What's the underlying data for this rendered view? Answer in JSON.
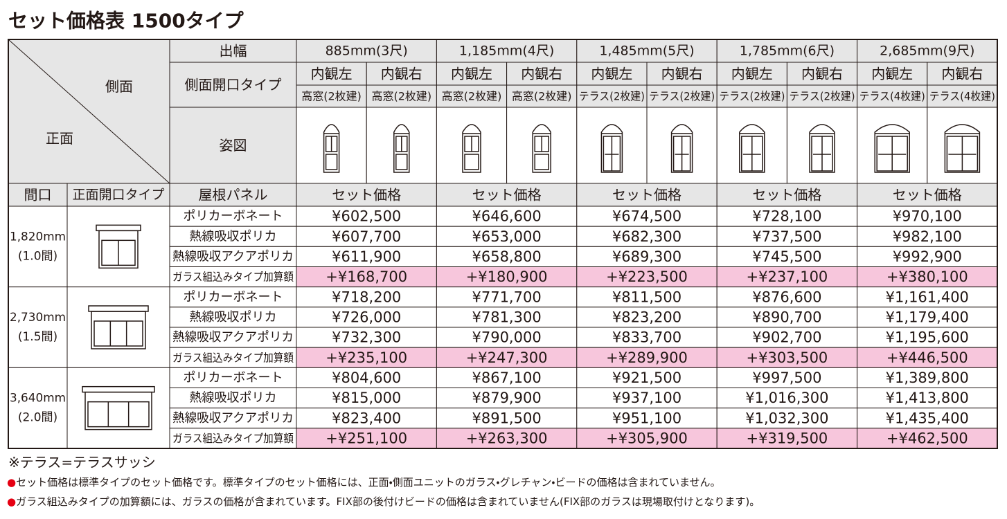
{
  "title": "セット価格表 1500タイプ",
  "header": {
    "corner_side": "側面",
    "corner_front": "正面",
    "width_label": "出幅",
    "side_type_label": "側面開口タイプ",
    "figure_label": "姿図",
    "frontage_label": "間口",
    "front_type_label": "正面開口タイプ",
    "roof_label": "屋根パネル"
  },
  "widths": [
    {
      "label": "885mm(3尺)",
      "price_header": "セット価格",
      "sides": [
        {
          "view": "内観左",
          "type": "高窓(2枚建)"
        },
        {
          "view": "内観右",
          "type": "高窓(2枚建)"
        }
      ]
    },
    {
      "label": "1,185mm(4尺)",
      "price_header": "セット価格",
      "sides": [
        {
          "view": "内観左",
          "type": "高窓(2枚建)"
        },
        {
          "view": "内観右",
          "type": "高窓(2枚建)"
        }
      ]
    },
    {
      "label": "1,485mm(5尺)",
      "price_header": "セット価格",
      "sides": [
        {
          "view": "内観左",
          "type": "テラス(2枚建)"
        },
        {
          "view": "内観右",
          "type": "テラス(2枚建)"
        }
      ]
    },
    {
      "label": "1,785mm(6尺)",
      "price_header": "セット価格",
      "sides": [
        {
          "view": "内観左",
          "type": "テラス(2枚建)"
        },
        {
          "view": "内観右",
          "type": "テラス(2枚建)"
        }
      ]
    },
    {
      "label": "2,685mm(9尺)",
      "price_header": "セット価格",
      "sides": [
        {
          "view": "内観左",
          "type": "テラス(4枚建)"
        },
        {
          "view": "内観右",
          "type": "テラス(4枚建)"
        }
      ]
    }
  ],
  "groups": [
    {
      "frontage": "1,820mm",
      "ken": "(1.0間)",
      "rows": [
        {
          "panel": "ポリカーボネート",
          "prices": [
            "¥602,500",
            "¥646,600",
            "¥674,500",
            "¥728,100",
            "¥970,100"
          ]
        },
        {
          "panel": "熱線吸収ポリカ",
          "prices": [
            "¥607,700",
            "¥653,000",
            "¥682,300",
            "¥737,500",
            "¥982,100"
          ]
        },
        {
          "panel": "熱線吸収アクアポリカ",
          "prices": [
            "¥611,900",
            "¥658,800",
            "¥689,300",
            "¥745,500",
            "¥992,900"
          ]
        },
        {
          "panel": "ガラス組込みタイプ加算額",
          "prices": [
            "+¥168,700",
            "+¥180,900",
            "+¥223,500",
            "+¥237,100",
            "+¥380,100"
          ]
        }
      ]
    },
    {
      "frontage": "2,730mm",
      "ken": "(1.5間)",
      "rows": [
        {
          "panel": "ポリカーボネート",
          "prices": [
            "¥718,200",
            "¥771,700",
            "¥811,500",
            "¥876,600",
            "¥1,161,400"
          ]
        },
        {
          "panel": "熱線吸収ポリカ",
          "prices": [
            "¥726,000",
            "¥781,300",
            "¥823,200",
            "¥890,700",
            "¥1,179,400"
          ]
        },
        {
          "panel": "熱線吸収アクアポリカ",
          "prices": [
            "¥732,300",
            "¥790,000",
            "¥833,700",
            "¥902,700",
            "¥1,195,600"
          ]
        },
        {
          "panel": "ガラス組込みタイプ加算額",
          "prices": [
            "+¥235,100",
            "+¥247,300",
            "+¥289,900",
            "+¥303,500",
            "+¥446,500"
          ]
        }
      ]
    },
    {
      "frontage": "3,640mm",
      "ken": "(2.0間)",
      "rows": [
        {
          "panel": "ポリカーボネート",
          "prices": [
            "¥804,600",
            "¥867,100",
            "¥921,500",
            "¥997,500",
            "¥1,389,800"
          ]
        },
        {
          "panel": "熱線吸収ポリカ",
          "prices": [
            "¥815,000",
            "¥879,900",
            "¥937,100",
            "¥1,016,300",
            "¥1,413,800"
          ]
        },
        {
          "panel": "熱線吸収アクアポリカ",
          "prices": [
            "¥823,400",
            "¥891,500",
            "¥951,100",
            "¥1,032,300",
            "¥1,435,400"
          ]
        },
        {
          "panel": "ガラス組込みタイプ加算額",
          "prices": [
            "+¥251,100",
            "+¥263,300",
            "+¥305,900",
            "+¥319,500",
            "+¥462,500"
          ]
        }
      ]
    }
  ],
  "footnote": "※テラス=テラスサッシ",
  "notes": [
    {
      "bullet": "●",
      "text": "セット価格は標準タイプのセット価格です。標準タイプのセット価格には、正面・側面ユニットのガラス・グレチャン・ビードの価格は含まれていません。"
    },
    {
      "bullet": "●",
      "text": "ガラス組込みタイプの加算額には、ガラスの価格が含まれています。FIX部の後付けビードの価格は含まれていません(FIX部のガラスは現場取付けとなります)。"
    }
  ]
}
